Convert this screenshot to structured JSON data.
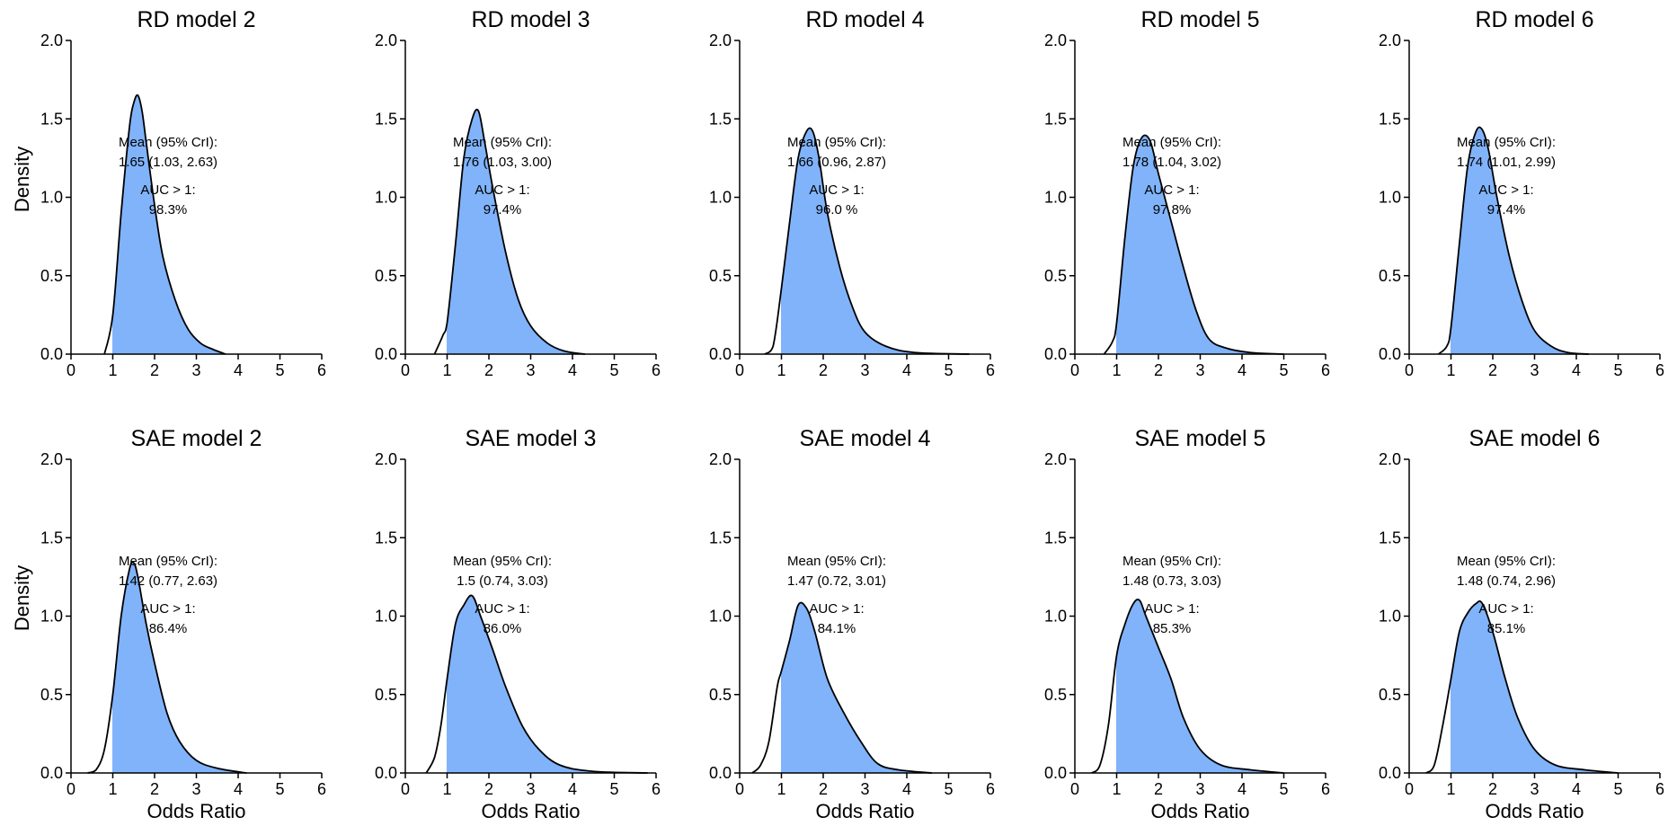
{
  "chart_data": [
    {
      "type": "area",
      "title": "RD model 2",
      "xlabel": "",
      "ylabel": "Density",
      "xlim": [
        0,
        6
      ],
      "ylim": [
        0,
        2.0
      ],
      "xticks": [
        0,
        1,
        2,
        3,
        4,
        5,
        6
      ],
      "yticks": [
        "0.0",
        "0.5",
        "1.0",
        "1.5",
        "2.0"
      ],
      "shade_from": 1,
      "fill": "#80b3fa",
      "annotation": {
        "line1": "Mean (95% CrI):",
        "line2": "1.65 (1.03, 2.63)",
        "line3": "AUC > 1:",
        "line4": "98.3%"
      },
      "curve": {
        "x": [
          0.8,
          1.0,
          1.2,
          1.4,
          1.5,
          1.6,
          1.7,
          1.8,
          2.0,
          2.2,
          2.5,
          2.8,
          3.1,
          3.4,
          3.7
        ],
        "y": [
          0.0,
          0.25,
          0.9,
          1.45,
          1.6,
          1.65,
          1.55,
          1.35,
          0.95,
          0.62,
          0.34,
          0.16,
          0.07,
          0.03,
          0.0
        ]
      }
    },
    {
      "type": "area",
      "title": "RD model 3",
      "xlabel": "",
      "ylabel": "",
      "xlim": [
        0,
        6
      ],
      "ylim": [
        0,
        2.0
      ],
      "xticks": [
        0,
        1,
        2,
        3,
        4,
        5,
        6
      ],
      "yticks": [
        "0.0",
        "0.5",
        "1.0",
        "1.5",
        "2.0"
      ],
      "shade_from": 1,
      "fill": "#80b3fa",
      "annotation": {
        "line1": "Mean (95% CrI):",
        "line2": "1.76 (1.03, 3.00)",
        "line3": "AUC > 1:",
        "line4": "97.4%"
      },
      "curve": {
        "x": [
          0.7,
          0.9,
          1.0,
          1.2,
          1.4,
          1.6,
          1.75,
          1.9,
          2.1,
          2.4,
          2.7,
          3.0,
          3.4,
          3.8,
          4.3
        ],
        "y": [
          0.0,
          0.12,
          0.2,
          0.7,
          1.25,
          1.5,
          1.55,
          1.35,
          1.05,
          0.65,
          0.35,
          0.18,
          0.07,
          0.02,
          0.0
        ]
      }
    },
    {
      "type": "area",
      "title": "RD model 4",
      "xlabel": "",
      "ylabel": "",
      "xlim": [
        0,
        6
      ],
      "ylim": [
        0,
        2.0
      ],
      "xticks": [
        0,
        1,
        2,
        3,
        4,
        5,
        6
      ],
      "yticks": [
        "0.0",
        "0.5",
        "1.0",
        "1.5",
        "2.0"
      ],
      "shade_from": 1,
      "fill": "#80b3fa",
      "annotation": {
        "line1": "Mean (95% CrI):",
        "line2": "1.66 (0.96, 2.87)",
        "line3": "AUC > 1:",
        "line4": "96.0 %"
      },
      "curve": {
        "x": [
          0.6,
          0.8,
          1.0,
          1.2,
          1.4,
          1.6,
          1.75,
          1.9,
          2.1,
          2.4,
          2.7,
          3.0,
          3.5,
          4.2,
          5.5
        ],
        "y": [
          0.0,
          0.05,
          0.42,
          0.85,
          1.25,
          1.42,
          1.42,
          1.25,
          0.9,
          0.55,
          0.3,
          0.14,
          0.05,
          0.01,
          0.0
        ]
      }
    },
    {
      "type": "area",
      "title": "RD model 5",
      "xlabel": "",
      "ylabel": "",
      "xlim": [
        0,
        6
      ],
      "ylim": [
        0,
        2.0
      ],
      "xticks": [
        0,
        1,
        2,
        3,
        4,
        5,
        6
      ],
      "yticks": [
        "0.0",
        "0.5",
        "1.0",
        "1.5",
        "2.0"
      ],
      "shade_from": 1,
      "fill": "#80b3fa",
      "annotation": {
        "line1": "Mean (95% CrI):",
        "line2": "1.78 (1.04, 3.02)",
        "line3": "AUC > 1:",
        "line4": "97.8%"
      },
      "curve": {
        "x": [
          0.7,
          0.9,
          1.0,
          1.2,
          1.4,
          1.6,
          1.8,
          2.0,
          2.3,
          2.6,
          2.9,
          3.2,
          3.6,
          4.2,
          5.0
        ],
        "y": [
          0.0,
          0.08,
          0.2,
          0.75,
          1.2,
          1.38,
          1.36,
          1.15,
          0.85,
          0.55,
          0.28,
          0.1,
          0.04,
          0.01,
          0.0
        ]
      }
    },
    {
      "type": "area",
      "title": "RD model 6",
      "xlabel": "",
      "ylabel": "",
      "xlim": [
        0,
        6
      ],
      "ylim": [
        0,
        2.0
      ],
      "xticks": [
        0,
        1,
        2,
        3,
        4,
        5,
        6
      ],
      "yticks": [
        "0.0",
        "0.5",
        "1.0",
        "1.5",
        "2.0"
      ],
      "shade_from": 1,
      "fill": "#80b3fa",
      "annotation": {
        "line1": "Mean (95% CrI):",
        "line2": "1.74 (1.01, 2.99)",
        "line3": "AUC > 1:",
        "line4": "97.4%"
      },
      "curve": {
        "x": [
          0.7,
          0.9,
          1.0,
          1.2,
          1.4,
          1.6,
          1.75,
          1.9,
          2.1,
          2.4,
          2.7,
          3.0,
          3.4,
          3.8,
          4.3
        ],
        "y": [
          0.0,
          0.05,
          0.17,
          0.7,
          1.2,
          1.42,
          1.43,
          1.3,
          1.0,
          0.62,
          0.34,
          0.15,
          0.05,
          0.01,
          0.0
        ]
      }
    },
    {
      "type": "area",
      "title": "SAE model 2",
      "xlabel": "Odds Ratio",
      "ylabel": "Density",
      "xlim": [
        0,
        6
      ],
      "ylim": [
        0,
        2.0
      ],
      "xticks": [
        0,
        1,
        2,
        3,
        4,
        5,
        6
      ],
      "yticks": [
        "0.0",
        "0.5",
        "1.0",
        "1.5",
        "2.0"
      ],
      "shade_from": 1,
      "fill": "#80b3fa",
      "annotation": {
        "line1": "Mean (95% CrI):",
        "line2": "1.42 (0.77, 2.63)",
        "line3": "AUC > 1:",
        "line4": "86.4%"
      },
      "curve": {
        "x": [
          0.4,
          0.6,
          0.8,
          1.0,
          1.2,
          1.4,
          1.5,
          1.6,
          1.8,
          2.0,
          2.3,
          2.6,
          3.0,
          3.5,
          4.2
        ],
        "y": [
          0.0,
          0.02,
          0.15,
          0.5,
          1.0,
          1.3,
          1.34,
          1.25,
          0.95,
          0.7,
          0.38,
          0.2,
          0.08,
          0.03,
          0.0
        ]
      }
    },
    {
      "type": "area",
      "title": "SAE model 3",
      "xlabel": "Odds Ratio",
      "ylabel": "",
      "xlim": [
        0,
        6
      ],
      "ylim": [
        0,
        2.0
      ],
      "xticks": [
        0,
        1,
        2,
        3,
        4,
        5,
        6
      ],
      "yticks": [
        "0.0",
        "0.5",
        "1.0",
        "1.5",
        "2.0"
      ],
      "shade_from": 1,
      "fill": "#80b3fa",
      "annotation": {
        "line1": "Mean (95% CrI):",
        "line2": "1.5 (0.74, 3.03)",
        "line3": "AUC > 1:",
        "line4": "86.0%"
      },
      "curve": {
        "x": [
          0.5,
          0.7,
          0.85,
          1.0,
          1.2,
          1.4,
          1.6,
          1.8,
          2.1,
          2.4,
          2.8,
          3.2,
          3.7,
          4.5,
          5.8
        ],
        "y": [
          0.0,
          0.1,
          0.3,
          0.6,
          0.95,
          1.07,
          1.13,
          1.0,
          0.78,
          0.55,
          0.3,
          0.15,
          0.05,
          0.01,
          0.0
        ]
      }
    },
    {
      "type": "area",
      "title": "SAE model 4",
      "xlabel": "Odds Ratio",
      "ylabel": "",
      "xlim": [
        0,
        6
      ],
      "ylim": [
        0,
        2.0
      ],
      "xticks": [
        0,
        1,
        2,
        3,
        4,
        5,
        6
      ],
      "yticks": [
        "0.0",
        "0.5",
        "1.0",
        "1.5",
        "2.0"
      ],
      "shade_from": 1,
      "fill": "#80b3fa",
      "annotation": {
        "line1": "Mean (95% CrI):",
        "line2": "1.47 (0.72, 3.01)",
        "line3": "AUC > 1:",
        "line4": "84.1%"
      },
      "curve": {
        "x": [
          0.3,
          0.5,
          0.7,
          0.9,
          1.0,
          1.2,
          1.4,
          1.6,
          1.8,
          2.1,
          2.5,
          2.9,
          3.3,
          3.8,
          4.6
        ],
        "y": [
          0.0,
          0.05,
          0.2,
          0.55,
          0.65,
          0.85,
          1.07,
          1.05,
          0.9,
          0.6,
          0.38,
          0.2,
          0.06,
          0.02,
          0.0
        ]
      }
    },
    {
      "type": "area",
      "title": "SAE model 5",
      "xlabel": "Odds Ratio",
      "ylabel": "",
      "xlim": [
        0,
        6
      ],
      "ylim": [
        0,
        2.0
      ],
      "xticks": [
        0,
        1,
        2,
        3,
        4,
        5,
        6
      ],
      "yticks": [
        "0.0",
        "0.5",
        "1.0",
        "1.5",
        "2.0"
      ],
      "shade_from": 1,
      "fill": "#80b3fa",
      "annotation": {
        "line1": "Mean (95% CrI):",
        "line2": "1.48 (0.73, 3.03)",
        "line3": "AUC > 1:",
        "line4": "85.3%"
      },
      "curve": {
        "x": [
          0.4,
          0.6,
          0.8,
          1.0,
          1.2,
          1.4,
          1.55,
          1.7,
          2.0,
          2.3,
          2.6,
          3.0,
          3.5,
          4.2,
          5.0
        ],
        "y": [
          0.0,
          0.05,
          0.3,
          0.75,
          0.95,
          1.08,
          1.1,
          1.0,
          0.8,
          0.6,
          0.35,
          0.15,
          0.05,
          0.02,
          0.0
        ]
      }
    },
    {
      "type": "area",
      "title": "SAE model 6",
      "xlabel": "Odds Ratio",
      "ylabel": "",
      "xlim": [
        0,
        6
      ],
      "ylim": [
        0,
        2.0
      ],
      "xticks": [
        0,
        1,
        2,
        3,
        4,
        5,
        6
      ],
      "yticks": [
        "0.0",
        "0.5",
        "1.0",
        "1.5",
        "2.0"
      ],
      "shade_from": 1,
      "fill": "#80b3fa",
      "annotation": {
        "line1": "Mean (95% CrI):",
        "line2": "1.48 (0.74, 2.96)",
        "line3": "AUC > 1:",
        "line4": "85.1%"
      },
      "curve": {
        "x": [
          0.4,
          0.6,
          0.8,
          1.0,
          1.2,
          1.4,
          1.6,
          1.75,
          2.0,
          2.3,
          2.6,
          3.0,
          3.5,
          4.2,
          5.0
        ],
        "y": [
          0.0,
          0.05,
          0.3,
          0.6,
          0.9,
          1.02,
          1.08,
          1.08,
          0.9,
          0.6,
          0.35,
          0.15,
          0.05,
          0.02,
          0.0
        ]
      }
    }
  ]
}
